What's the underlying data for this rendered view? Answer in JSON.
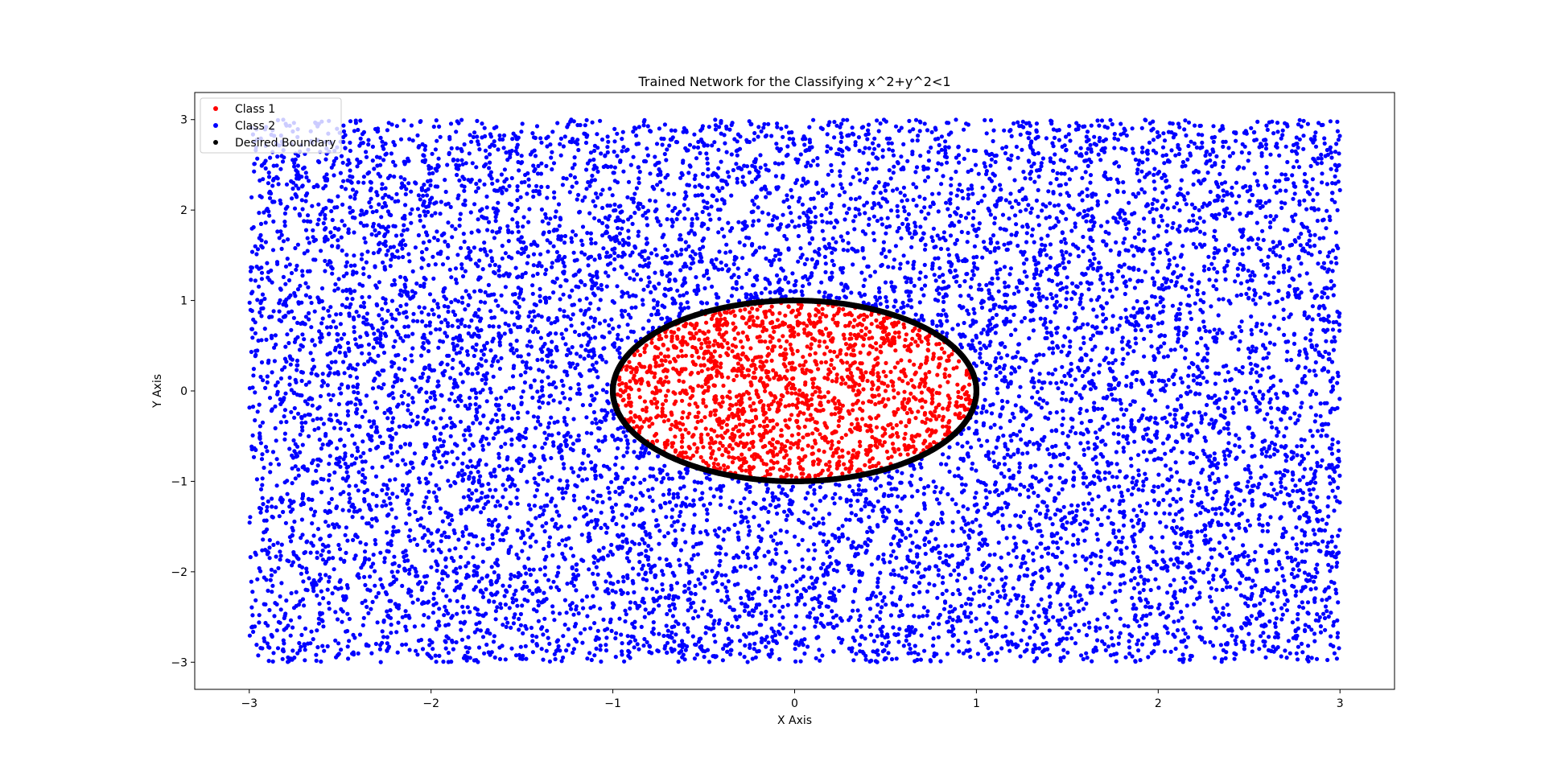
{
  "chart_data": {
    "type": "scatter",
    "title": "Trained Network for the Classifying x^2+y^2<1",
    "xlabel": "X Axis",
    "ylabel": "Y Axis",
    "xlim": [
      -3.3,
      3.3
    ],
    "ylim": [
      -3.3,
      3.3
    ],
    "x_ticks": [
      -3,
      -2,
      -1,
      0,
      1,
      2,
      3
    ],
    "y_ticks": [
      -3,
      -2,
      -1,
      0,
      1,
      2,
      3
    ],
    "x_tick_labels": [
      "−3",
      "−2",
      "−1",
      "0",
      "1",
      "2",
      "3"
    ],
    "y_tick_labels": [
      "−3",
      "−2",
      "−1",
      "0",
      "1",
      "2",
      "3"
    ],
    "grid": false,
    "legend_position": "top-left",
    "sample_domain": {
      "x": [
        -3,
        3
      ],
      "y": [
        -3,
        3
      ]
    },
    "series": [
      {
        "name": "Class 1",
        "color": "#ff0000",
        "marker": "dot",
        "region": "x^2+y^2<1",
        "approx_count": 1800
      },
      {
        "name": "Class 2",
        "color": "#0000ff",
        "marker": "dot",
        "region": "x^2+y^2>=1",
        "approx_count": 10500
      },
      {
        "name": "Desired Boundary",
        "color": "#000000",
        "marker": "dot",
        "shape": "circle",
        "radius": 1.0,
        "center": [
          0,
          0
        ]
      }
    ]
  }
}
